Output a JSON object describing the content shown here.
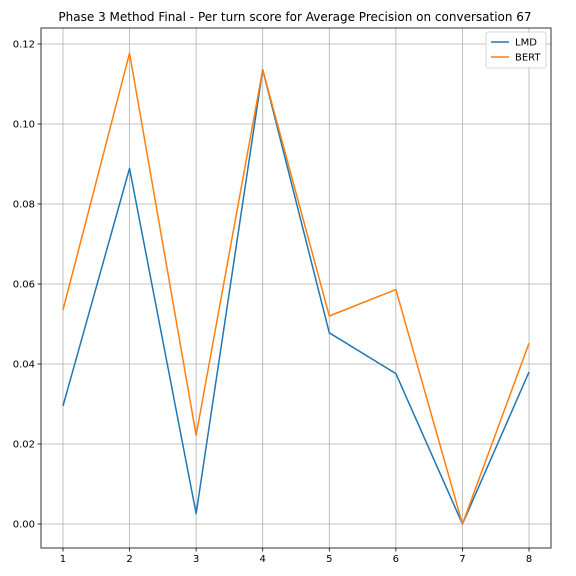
{
  "chart_data": {
    "type": "line",
    "title": "Phase 3 Method Final - Per turn score for Average Precision on conversation 67",
    "xlabel": "",
    "ylabel": "",
    "x": [
      1,
      2,
      3,
      4,
      5,
      6,
      7,
      8
    ],
    "xlim": [
      0.67,
      8.33
    ],
    "ylim": [
      -0.006,
      0.124
    ],
    "xticks": [
      "1",
      "2",
      "3",
      "4",
      "5",
      "6",
      "7",
      "8"
    ],
    "yticks": [
      "0.00",
      "0.02",
      "0.04",
      "0.06",
      "0.08",
      "0.10",
      "0.12"
    ],
    "grid": true,
    "legend_position": "top-right",
    "series": [
      {
        "name": "LMD",
        "color": "#1f77b4",
        "values": [
          0.0295,
          0.0889,
          0.0026,
          0.1136,
          0.0478,
          0.0376,
          0.0,
          0.038
        ]
      },
      {
        "name": "BERT",
        "color": "#ff7f0e",
        "values": [
          0.0535,
          0.1177,
          0.0222,
          0.1136,
          0.052,
          0.0586,
          0.0,
          0.0452
        ]
      }
    ]
  }
}
